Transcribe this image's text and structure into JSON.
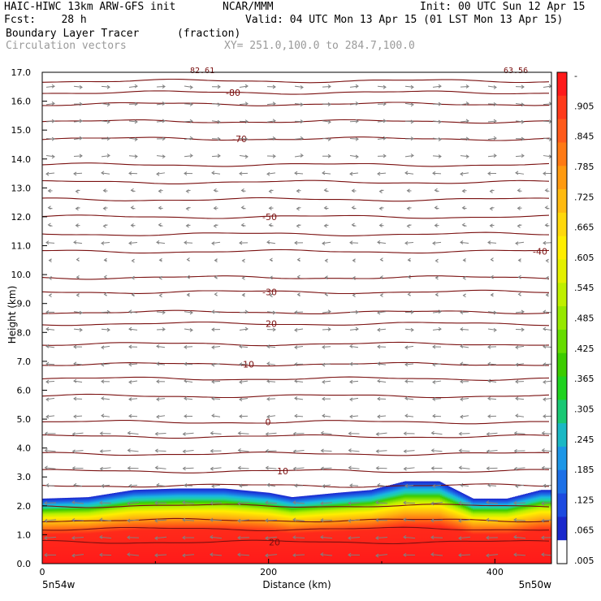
{
  "header": {
    "line1_left": "HAIC-HIWC 13km ARW-GFS init",
    "line1_mid": "NCAR/MMM",
    "line1_right": "Init: 00 UTC Sun 12 Apr 15",
    "line2_left": "Fcst:    28 h",
    "line2_right": "Valid: 04 UTC Mon 13 Apr 15 (01 LST Mon 13 Apr 15)",
    "field_name": "Boundary Layer Tracer",
    "field_units": "(fraction)",
    "overlay_name": "Circulation vectors",
    "cross_section": "XY= 251.0,100.0 to 284.7,100.0"
  },
  "chart_data": {
    "type": "heatmap",
    "title": "Boundary Layer Tracer (fraction)",
    "xlabel": "Distance (km)",
    "ylabel": "Height (km)",
    "xlim": [
      0,
      450
    ],
    "ylim": [
      0,
      17
    ],
    "x_ticks": [
      "0",
      "200",
      "400"
    ],
    "y_ticks": [
      "0.0",
      "1.0",
      "2.0",
      "3.0",
      "4.0",
      "5.0",
      "6.0",
      "7.0",
      "8.0",
      "9.0",
      "10.0",
      "11.0",
      "12.0",
      "13.0",
      "14.0",
      "15.0",
      "16.0",
      "17.0"
    ],
    "endpoints": {
      "left": "5n54w",
      "right": "5n50w"
    },
    "corner_labels": {
      "top_center": "82.61",
      "top_right": "63.56"
    },
    "colorbar_labels": [
      "-",
      ".905",
      ".845",
      ".785",
      ".725",
      ".665",
      ".605",
      ".545",
      ".485",
      ".425",
      ".365",
      ".305",
      ".245",
      ".185",
      ".125",
      ".065",
      ".005"
    ],
    "colorbar_colors": [
      "#ff1a1a",
      "#ff3a1a",
      "#ff5a1a",
      "#ff7a14",
      "#ff9a10",
      "#ffba10",
      "#ffd80c",
      "#ffee00",
      "#e4f000",
      "#bff000",
      "#96e800",
      "#66dc00",
      "#3ccc00",
      "#1fd21f",
      "#19c874",
      "#1ab8c4",
      "#1c96e6",
      "#1c70e6",
      "#1c4ae0",
      "#1a28cc",
      "#ffffff"
    ],
    "boundary_layer_top_km": {
      "x": [
        0,
        40,
        80,
        120,
        160,
        200,
        220,
        260,
        290,
        320,
        350,
        380,
        410,
        440,
        450
      ],
      "y": [
        2.25,
        2.3,
        2.55,
        2.6,
        2.6,
        2.45,
        2.3,
        2.45,
        2.55,
        2.85,
        2.85,
        2.25,
        2.25,
        2.55,
        2.55
      ]
    },
    "temperature_contours_C": [
      {
        "label": "-80",
        "height_km": 16.3
      },
      {
        "label": "-70",
        "height_km": 14.7
      },
      {
        "label": "-50",
        "height_km": 12.0
      },
      {
        "label": "-40",
        "height_km": 10.8
      },
      {
        "label": "-30",
        "height_km": 9.4
      },
      {
        "label": "-20",
        "height_km": 8.3
      },
      {
        "label": "-10",
        "height_km": 6.9
      },
      {
        "label": "0",
        "height_km": 4.9
      },
      {
        "label": "10",
        "height_km": 3.2
      },
      {
        "label": "20",
        "height_km": 0.75
      }
    ],
    "unlabeled_contour_heights_km": [
      16.7,
      15.9,
      15.3,
      13.8,
      13.2,
      12.6,
      11.4,
      9.9,
      8.7,
      7.6,
      6.4,
      5.8,
      4.4,
      3.8,
      2.7,
      2.0,
      1.5,
      1.2
    ],
    "grid": false
  }
}
